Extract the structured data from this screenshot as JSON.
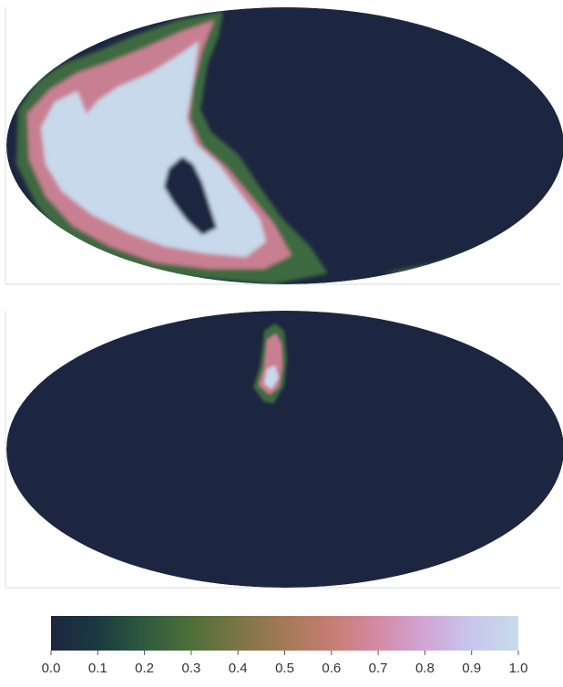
{
  "chart_data": [
    {
      "type": "heatmap",
      "projection": "mollweide",
      "colormap": "cubehelix",
      "value_range": [
        0.0,
        1.0
      ],
      "background_value": 0.0,
      "regions": [
        {
          "description": "large saturated blob, left-center hemisphere",
          "peak_value": 1.0
        },
        {
          "description": "pink/green gradient rim around blob",
          "peak_value": 0.7
        },
        {
          "description": "dark hole inside blob",
          "peak_value": 0.05
        }
      ]
    },
    {
      "type": "heatmap",
      "projection": "mollweide",
      "colormap": "cubehelix",
      "value_range": [
        0.0,
        1.0
      ],
      "background_value": 0.0,
      "regions": [
        {
          "description": "small localized peak near top center",
          "peak_value": 1.0
        }
      ]
    }
  ],
  "colorbar": {
    "min": 0.0,
    "max": 1.0,
    "ticks": [
      "0.0",
      "0.1",
      "0.2",
      "0.3",
      "0.4",
      "0.5",
      "0.6",
      "0.7",
      "0.8",
      "0.9",
      "1.0"
    ],
    "colors": [
      "#1c2640",
      "#1a3a40",
      "#2f5a3f",
      "#4f6e3a",
      "#7a7644",
      "#a37a55",
      "#c57d73",
      "#d48aa4",
      "#d0a6d6",
      "#c8c6ec",
      "#c6dcea"
    ]
  }
}
